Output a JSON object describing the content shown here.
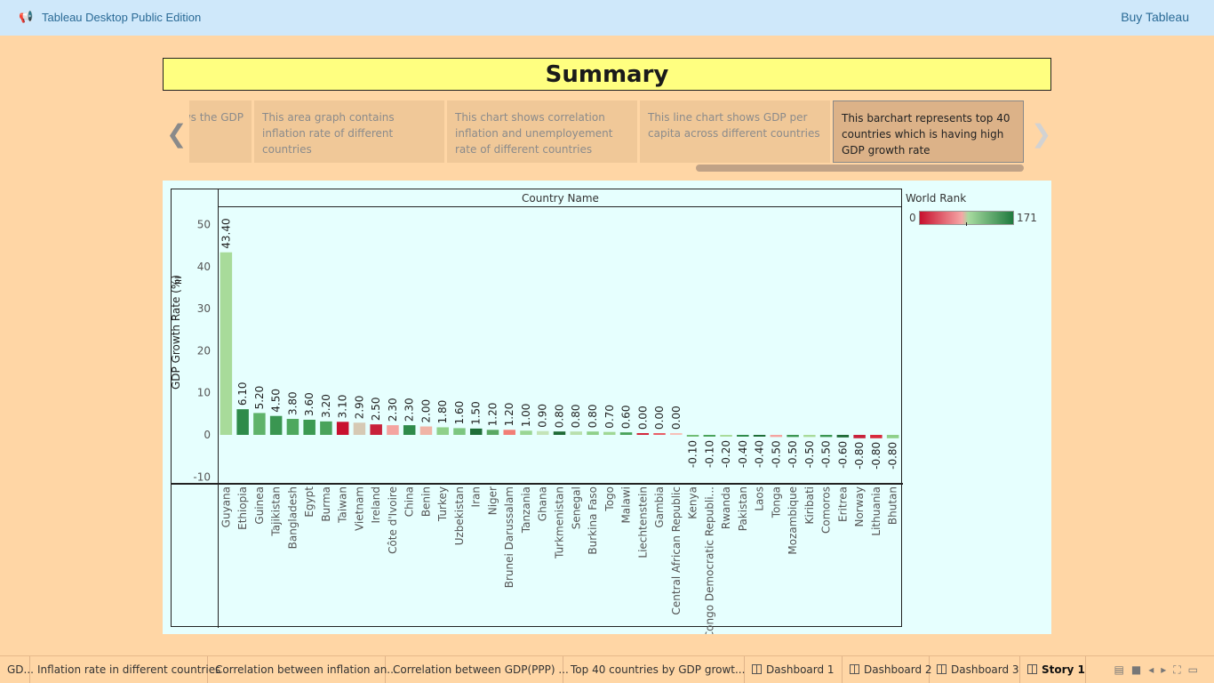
{
  "app": {
    "title": "Tableau Desktop Public Edition",
    "buy_label": "Buy Tableau"
  },
  "story": {
    "title": "Summary",
    "points": [
      {
        "text": "This map shows the GDP"
      },
      {
        "text": "This area graph contains inflation rate of different countries"
      },
      {
        "text": "This chart shows correlation inflation and unemployement rate of different countries"
      },
      {
        "text": "This line chart shows GDP per capita across different countries"
      },
      {
        "text": "This barchart represents top 40 countries which is having high GDP growth rate"
      }
    ],
    "active_index": 4
  },
  "legend": {
    "title": "World Rank",
    "min": "0",
    "max": "171"
  },
  "chart_data": {
    "type": "bar",
    "column_header": "Country Name",
    "ylabel": "GDP Growth Rate (%)",
    "ylim": [
      -10,
      52
    ],
    "yticks": [
      "50",
      "40",
      "30",
      "20",
      "10",
      "0",
      "-10"
    ],
    "categories": [
      "Guyana",
      "Ethiopia",
      "Guinea",
      "Tajikistan",
      "Bangladesh",
      "Egypt",
      "Burma",
      "Taiwan",
      "Vietnam",
      "Ireland",
      "Côte d'Ivoire",
      "China",
      "Benin",
      "Turkey",
      "Uzbekistan",
      "Iran",
      "Niger",
      "Brunei Darussalam",
      "Tanzania",
      "Ghana",
      "Turkmenistan",
      "Senegal",
      "Burkina Faso",
      "Togo",
      "Malawi",
      "Liechtenstein",
      "Gambia",
      "Central African Republic",
      "Kenya",
      "Congo Democratic Republi...",
      "Rwanda",
      "Pakistan",
      "Laos",
      "Tonga",
      "Mozambique",
      "Kiribati",
      "Comoros",
      "Eritrea",
      "Norway",
      "Lithuania",
      "Bhutan"
    ],
    "values": [
      43.4,
      6.1,
      5.2,
      4.5,
      3.8,
      3.6,
      3.2,
      3.1,
      2.9,
      2.5,
      2.3,
      2.3,
      2.0,
      1.8,
      1.6,
      1.5,
      1.2,
      1.2,
      1.0,
      0.9,
      0.8,
      0.8,
      0.8,
      0.7,
      0.6,
      0.0,
      0.0,
      0.0,
      -0.1,
      -0.1,
      -0.2,
      -0.4,
      -0.4,
      -0.5,
      -0.5,
      -0.5,
      -0.5,
      -0.6,
      -0.8,
      -0.8,
      -0.8
    ],
    "labels": [
      "43.40",
      "6.10",
      "5.20",
      "4.50",
      "3.80",
      "3.60",
      "3.20",
      "3.10",
      "2.90",
      "2.50",
      "2.30",
      "2.30",
      "2.00",
      "1.80",
      "1.60",
      "1.50",
      "1.20",
      "1.20",
      "1.00",
      "0.90",
      "0.80",
      "0.80",
      "0.80",
      "0.70",
      "0.60",
      "0.00",
      "0.00",
      "0.00",
      "-0.10",
      "-0.10",
      "-0.20",
      "-0.40",
      "-0.40",
      "-0.50",
      "-0.50",
      "-0.50",
      "-0.50",
      "-0.60",
      "-0.80",
      "-0.80",
      "-0.80"
    ],
    "colors": [
      "#a8db9a",
      "#2e8b4a",
      "#5fb36a",
      "#3a9651",
      "#4ea85e",
      "#3c9a52",
      "#4aa35b",
      "#c8102e",
      "#d6c9b4",
      "#c8213a",
      "#f4a4a0",
      "#2e8b4a",
      "#f0b4a6",
      "#8fd08a",
      "#7cc680",
      "#1f6e38",
      "#5aa863",
      "#f27e76",
      "#9ad694",
      "#c4e4b8",
      "#1f6a36",
      "#b9e0ad",
      "#8fd08a",
      "#a0d896",
      "#4aa35b",
      "#d2283c",
      "#e85e66",
      "#f6c0b8",
      "#6fbd74",
      "#4aa35b",
      "#a8db9a",
      "#2e8b4a",
      "#1f6e38",
      "#f4a4a0",
      "#3a9651",
      "#a8db9a",
      "#3a9651",
      "#1f6a36",
      "#c8213a",
      "#d82a3c",
      "#8fd08a"
    ]
  },
  "tabs": [
    {
      "label": "GD...",
      "icon": ""
    },
    {
      "label": "Inflation rate in different countries",
      "icon": ""
    },
    {
      "label": "Correlation between inflation an...",
      "icon": ""
    },
    {
      "label": "Correlation between GDP(PPP) ...",
      "icon": ""
    },
    {
      "label": "Top 40 countries by GDP growt...",
      "icon": ""
    },
    {
      "label": "Dashboard 1",
      "icon": "dashboard-icon"
    },
    {
      "label": "Dashboard 2",
      "icon": "dashboard-icon"
    },
    {
      "label": "Dashboard 3",
      "icon": "dashboard-icon"
    },
    {
      "label": "Story 1",
      "icon": "story-icon"
    }
  ]
}
